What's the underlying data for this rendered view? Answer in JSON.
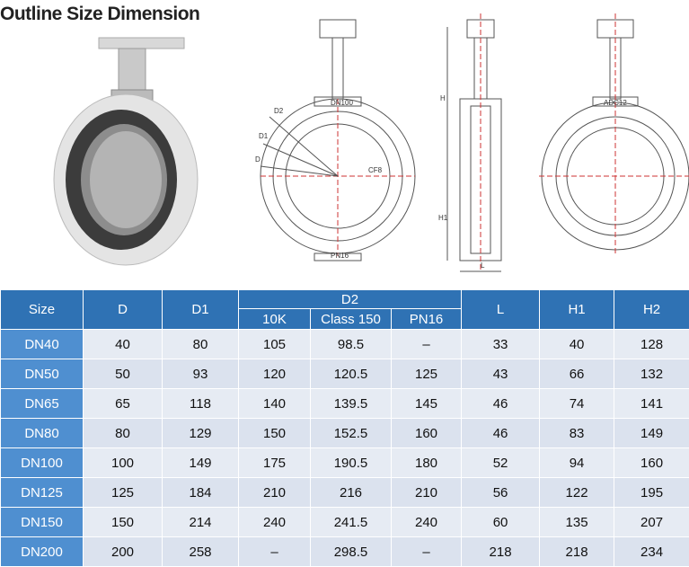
{
  "title": "Outline Size Dimension",
  "drawing_labels": {
    "top_flange": "DN100",
    "d2": "D2",
    "d1": "D1",
    "d": "D",
    "disc": "CF8",
    "bottom_flange": "PN16",
    "h": "H",
    "h1": "H1",
    "l": "L",
    "body": "ADC12"
  },
  "table": {
    "header": {
      "size": "Size",
      "d": "D",
      "d1": "D1",
      "d2": "D2",
      "l": "L",
      "h1": "H1",
      "h2": "H2",
      "d2_sub": [
        "10K",
        "Class 150",
        "PN16"
      ]
    },
    "rows": [
      [
        "DN40",
        "40",
        "80",
        "105",
        "98.5",
        "–",
        "33",
        "40",
        "128"
      ],
      [
        "DN50",
        "50",
        "93",
        "120",
        "120.5",
        "125",
        "43",
        "66",
        "132"
      ],
      [
        "DN65",
        "65",
        "118",
        "140",
        "139.5",
        "145",
        "46",
        "74",
        "141"
      ],
      [
        "DN80",
        "80",
        "129",
        "150",
        "152.5",
        "160",
        "46",
        "83",
        "149"
      ],
      [
        "DN100",
        "100",
        "149",
        "175",
        "190.5",
        "180",
        "52",
        "94",
        "160"
      ],
      [
        "DN125",
        "125",
        "184",
        "210",
        "216",
        "210",
        "56",
        "122",
        "195"
      ],
      [
        "DN150",
        "150",
        "214",
        "240",
        "241.5",
        "240",
        "60",
        "135",
        "207"
      ],
      [
        "DN200",
        "200",
        "258",
        "–",
        "298.5",
        "–",
        "218",
        "218",
        "234"
      ]
    ]
  }
}
